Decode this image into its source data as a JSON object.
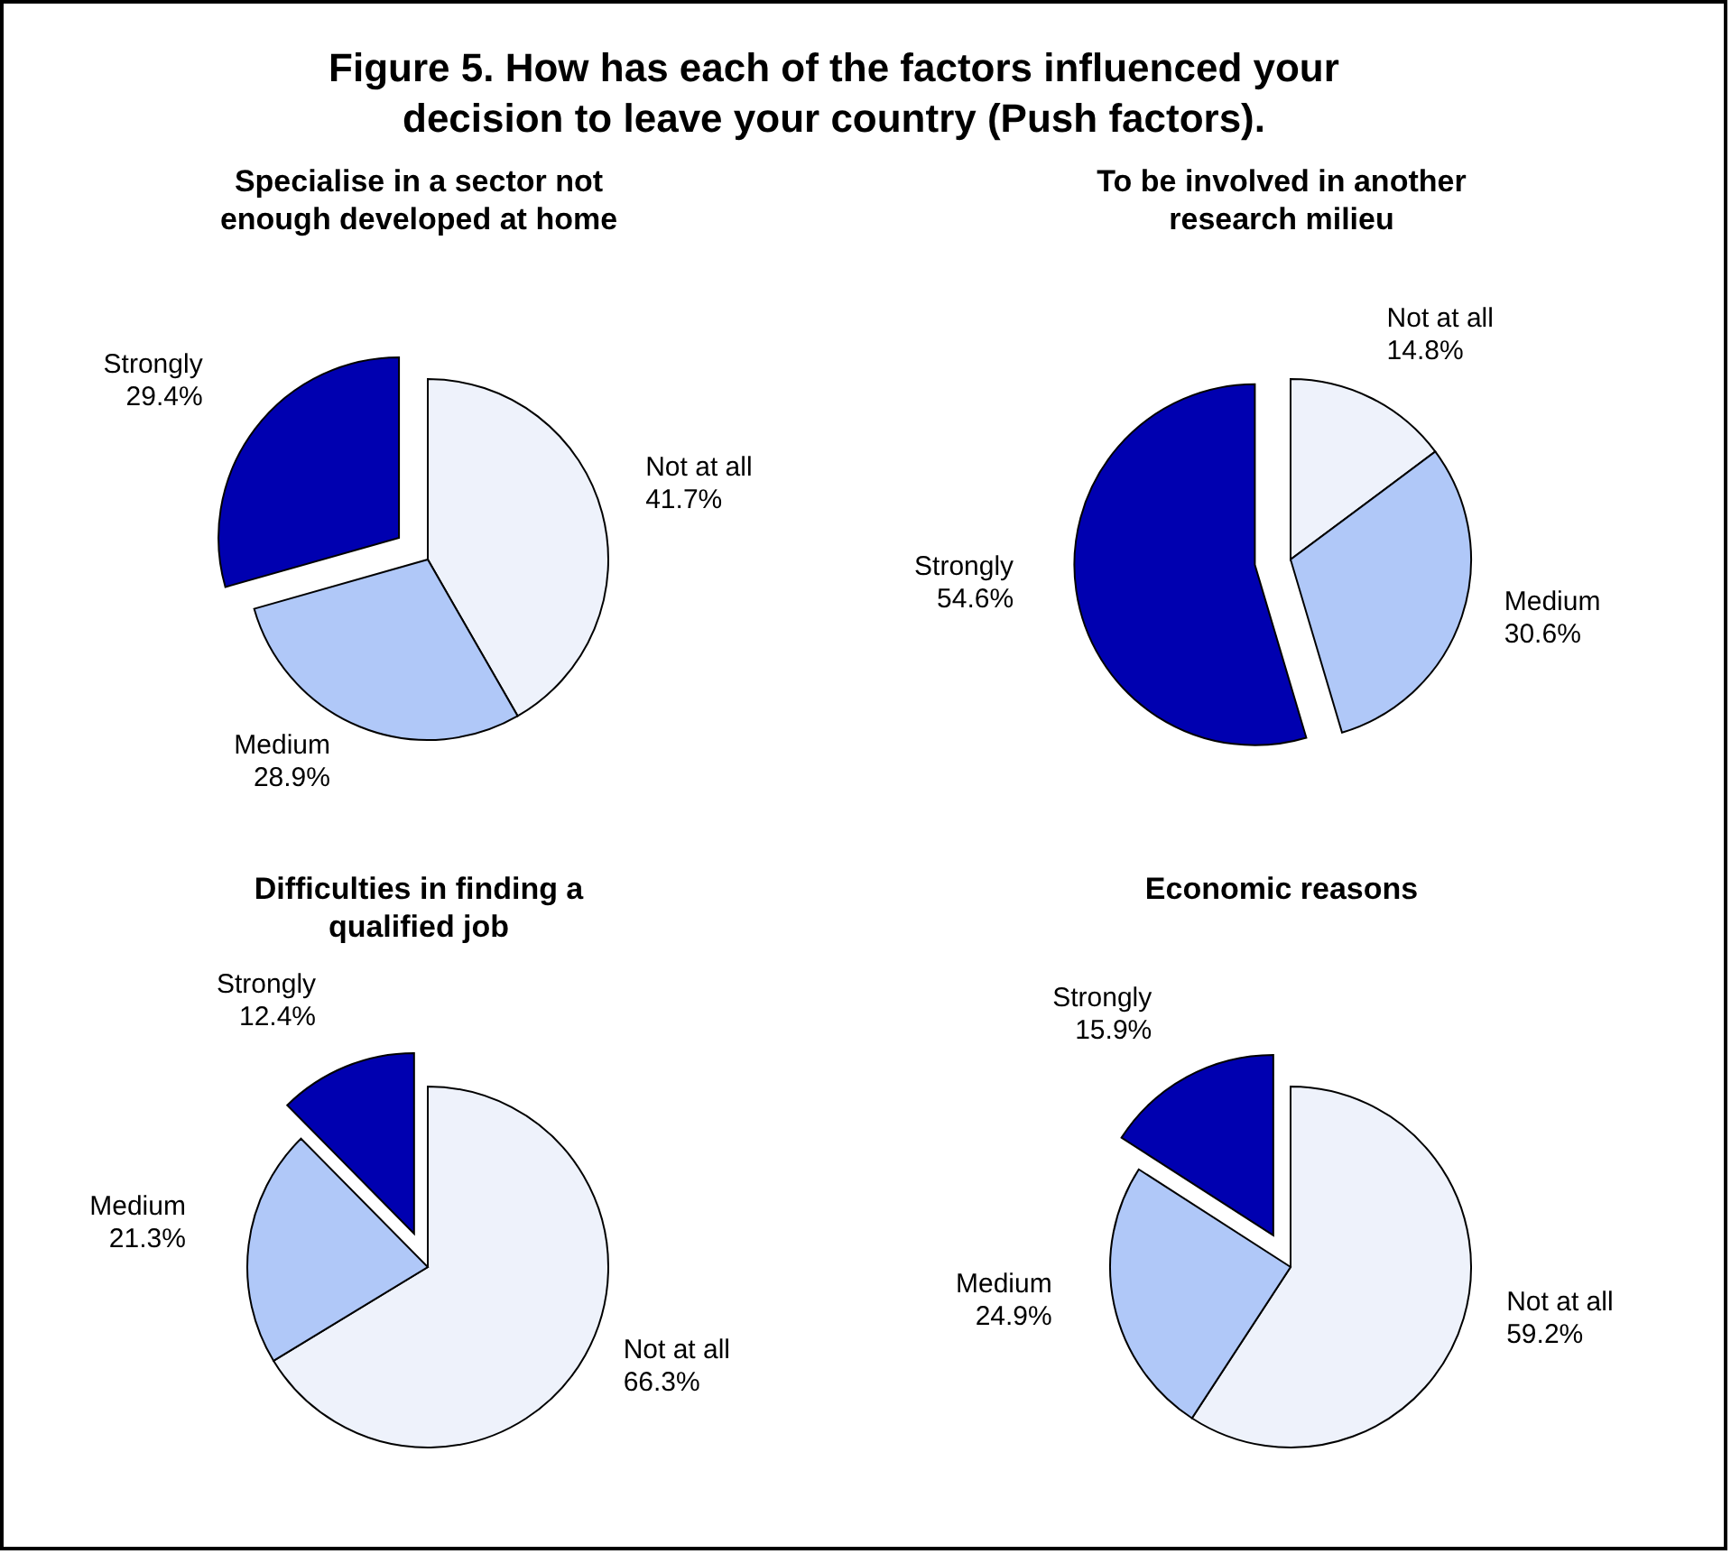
{
  "chart_data": [
    {
      "type": "pie",
      "title": "Figure 5. How has each of the factors influenced your decision to leave your country (Push factors).",
      "subtitle": "Specialise in a sector not enough developed at home",
      "categories": [
        "Not at all",
        "Medium",
        "Strongly"
      ],
      "values": [
        41.7,
        28.9,
        29.4
      ],
      "value_labels": [
        "41.7%",
        "28.9%",
        "29.4%"
      ],
      "colors": [
        "#eef2fb",
        "#b0c8f8",
        "#0000b0"
      ]
    },
    {
      "type": "pie",
      "subtitle": "To be involved in another research milieu",
      "categories": [
        "Not at all",
        "Medium",
        "Strongly"
      ],
      "values": [
        14.8,
        30.6,
        54.6
      ],
      "value_labels": [
        "14.8%",
        "30.6%",
        "54.6%"
      ],
      "colors": [
        "#eef2fb",
        "#b0c8f8",
        "#0000b0"
      ]
    },
    {
      "type": "pie",
      "subtitle": "Difficulties in finding a qualified job",
      "categories": [
        "Not at all",
        "Medium",
        "Strongly"
      ],
      "values": [
        66.3,
        21.3,
        12.4
      ],
      "value_labels": [
        "66.3%",
        "21.3%",
        "12.4%"
      ],
      "colors": [
        "#eef2fb",
        "#b0c8f8",
        "#0000b0"
      ]
    },
    {
      "type": "pie",
      "subtitle": "Economic reasons",
      "categories": [
        "Not at all",
        "Medium",
        "Strongly"
      ],
      "values": [
        59.2,
        24.9,
        15.9
      ],
      "value_labels": [
        "59.2%",
        "24.9%",
        "15.9%"
      ],
      "colors": [
        "#eef2fb",
        "#b0c8f8",
        "#0000b0"
      ]
    }
  ]
}
